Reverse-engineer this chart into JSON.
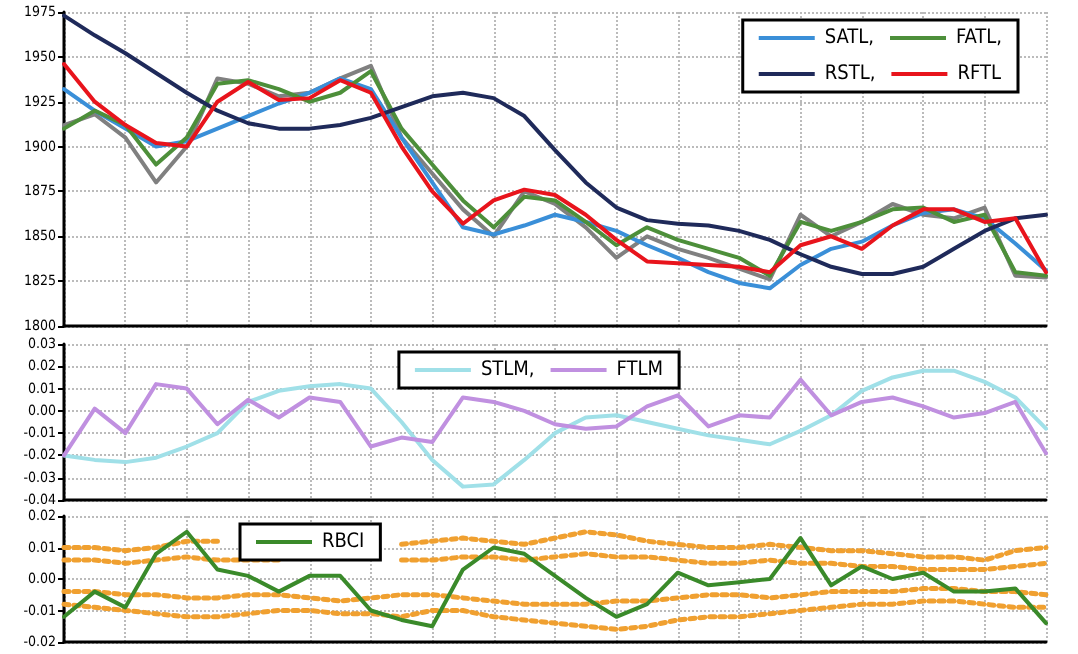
{
  "chart_data": [
    {
      "type": "line",
      "categories": [
        null,
        null,
        null,
        null,
        null,
        null,
        null,
        null,
        null,
        null,
        null,
        null,
        null,
        null,
        null,
        null,
        null,
        null,
        null,
        null,
        null,
        null,
        null,
        null,
        null,
        null,
        null,
        null,
        null,
        null,
        null,
        null,
        null
      ],
      "series": [
        {
          "color": "#808080",
          "values": [
            1912,
            1918,
            1905,
            1880,
            1900,
            1938,
            1935,
            1928,
            1930,
            1938,
            1945,
            1905,
            1885,
            1865,
            1850,
            1875,
            1868,
            1855,
            1838,
            1850,
            1843,
            1838,
            1832,
            1826,
            1862,
            1850,
            1858,
            1868,
            1862,
            1860,
            1866,
            1828,
            1827
          ]
        },
        {
          "name": "SATL,",
          "color": "#3a8fd8",
          "values": [
            1932,
            1920,
            1910,
            1900,
            1903,
            1910,
            1917,
            1924,
            1930,
            1938,
            1932,
            1905,
            1880,
            1855,
            1851,
            1856,
            1862,
            1858,
            1853,
            1845,
            1838,
            1830,
            1824,
            1821,
            1834,
            1843,
            1847,
            1856,
            1863,
            1865,
            1860,
            1846,
            1831
          ]
        },
        {
          "name": "FATL,",
          "color": "#4d8f3a",
          "values": [
            1910,
            1920,
            1912,
            1890,
            1905,
            1935,
            1937,
            1932,
            1925,
            1930,
            1942,
            1910,
            1890,
            1870,
            1855,
            1872,
            1870,
            1858,
            1845,
            1855,
            1848,
            1843,
            1838,
            1828,
            1858,
            1853,
            1858,
            1865,
            1866,
            1858,
            1862,
            1830,
            1828
          ]
        },
        {
          "name": "RSTL,",
          "color": "#1f2a5a",
          "values": [
            1973,
            1962,
            1952,
            1941,
            1930,
            1920,
            1913,
            1910,
            1910,
            1912,
            1916,
            1922,
            1928,
            1930,
            1927,
            1917,
            1898,
            1880,
            1866,
            1859,
            1857,
            1856,
            1853,
            1848,
            1840,
            1833,
            1829,
            1829,
            1833,
            1843,
            1853,
            1860,
            1862
          ]
        },
        {
          "name": "RFTL",
          "color": "#e8141c",
          "values": [
            1946,
            1925,
            1912,
            1902,
            1900,
            1925,
            1936,
            1926,
            1927,
            1937,
            1930,
            1900,
            1875,
            1857,
            1870,
            1876,
            1873,
            1862,
            1848,
            1836,
            1835,
            1834,
            1833,
            1830,
            1845,
            1850,
            1843,
            1856,
            1865,
            1865,
            1858,
            1860,
            1830
          ]
        }
      ],
      "ylim": [
        1800,
        1975
      ],
      "yticks": [
        1800,
        1825,
        1850,
        1875,
        1900,
        1925,
        1950,
        1975
      ],
      "grid": true,
      "legend": "top right",
      "tick_labels": "y",
      "marker": "none",
      "line_style": "solid"
    },
    {
      "type": "line",
      "categories": [
        null,
        null,
        null,
        null,
        null,
        null,
        null,
        null,
        null,
        null,
        null,
        null,
        null,
        null,
        null,
        null,
        null,
        null,
        null,
        null,
        null,
        null,
        null,
        null,
        null,
        null,
        null,
        null,
        null,
        null,
        null,
        null,
        null
      ],
      "series": [
        {
          "name": "STLM,",
          "color": "#a0e0e8",
          "values": [
            -0.02,
            -0.022,
            -0.023,
            -0.021,
            -0.016,
            -0.01,
            0.004,
            0.009,
            0.011,
            0.012,
            0.01,
            -0.005,
            -0.022,
            -0.034,
            -0.033,
            -0.022,
            -0.01,
            -0.003,
            -0.002,
            -0.005,
            -0.008,
            -0.011,
            -0.013,
            -0.015,
            -0.009,
            -0.002,
            0.009,
            0.015,
            0.018,
            0.018,
            0.013,
            0.006,
            -0.008
          ]
        },
        {
          "name": "FTLM",
          "color": "#c090e0",
          "values": [
            -0.02,
            0.001,
            -0.01,
            0.012,
            0.01,
            -0.006,
            0.005,
            -0.003,
            0.006,
            0.004,
            -0.016,
            -0.012,
            -0.014,
            0.006,
            0.004,
            0.0,
            -0.006,
            -0.008,
            -0.007,
            0.002,
            0.007,
            -0.007,
            -0.002,
            -0.003,
            0.014,
            -0.002,
            0.004,
            0.006,
            0.002,
            -0.003,
            -0.001,
            0.004,
            -0.019
          ]
        }
      ],
      "ylim": [
        -0.04,
        0.03
      ],
      "yticks": [
        {
          "value": -0.04,
          "label": "-0.04"
        },
        {
          "value": -0.03,
          "label": "-0.03"
        },
        {
          "value": -0.02,
          "label": "-0.02"
        },
        {
          "value": -0.01,
          "label": "-0.01"
        },
        {
          "value": 0,
          "label": "0.00"
        },
        {
          "value": 0.01,
          "label": "0.01"
        },
        {
          "value": 0.02,
          "label": "0.02"
        },
        {
          "value": 0.03,
          "label": "0.03"
        }
      ],
      "grid": true,
      "legend": "top",
      "tick_labels": "y",
      "marker": "none",
      "line_style": "solid"
    },
    {
      "type": "line",
      "categories": [
        null,
        null,
        null,
        null,
        null,
        null,
        null,
        null,
        null,
        null,
        null,
        null,
        null,
        null,
        null,
        null,
        null,
        null,
        null,
        null,
        null,
        null,
        null,
        null,
        null,
        null,
        null,
        null,
        null,
        null,
        null,
        null,
        null
      ],
      "series": [
        {
          "color": "#f0a030",
          "line_style": "dotted",
          "values": [
            0.01,
            0.01,
            0.009,
            0.01,
            0.012,
            0.012,
            null,
            null,
            null,
            null,
            null,
            0.011,
            0.012,
            0.013,
            0.012,
            0.011,
            0.013,
            0.015,
            0.014,
            0.012,
            0.011,
            0.01,
            0.01,
            0.011,
            0.01,
            0.009,
            0.009,
            0.008,
            0.007,
            0.007,
            0.006,
            0.009,
            0.01
          ]
        },
        {
          "color": "#f0a030",
          "line_style": "dotted",
          "values": [
            0.006,
            0.006,
            0.005,
            0.006,
            0.007,
            0.006,
            0.006,
            0.006,
            null,
            null,
            null,
            0.006,
            0.006,
            0.007,
            0.007,
            0.006,
            0.007,
            0.008,
            0.007,
            0.007,
            0.006,
            0.005,
            0.005,
            0.006,
            0.005,
            0.005,
            0.004,
            0.004,
            0.003,
            0.003,
            0.003,
            0.004,
            0.005
          ]
        },
        {
          "color": "#f0a030",
          "line_style": "dotted",
          "values": [
            -0.004,
            -0.004,
            -0.005,
            -0.005,
            -0.006,
            -0.006,
            -0.005,
            -0.005,
            -0.006,
            -0.007,
            -0.006,
            -0.005,
            -0.005,
            -0.006,
            -0.007,
            -0.008,
            -0.008,
            -0.008,
            -0.007,
            -0.007,
            -0.006,
            -0.005,
            -0.005,
            -0.006,
            -0.005,
            -0.004,
            -0.004,
            -0.004,
            -0.003,
            -0.003,
            -0.004,
            -0.004,
            -0.005
          ]
        },
        {
          "color": "#f0a030",
          "line_style": "dotted",
          "values": [
            -0.008,
            -0.009,
            -0.01,
            -0.011,
            -0.012,
            -0.012,
            -0.011,
            -0.01,
            -0.01,
            -0.011,
            -0.011,
            -0.012,
            -0.01,
            -0.01,
            -0.012,
            -0.013,
            -0.014,
            -0.015,
            -0.016,
            -0.015,
            -0.013,
            -0.012,
            -0.012,
            -0.011,
            -0.01,
            -0.009,
            -0.008,
            -0.008,
            -0.007,
            -0.007,
            -0.008,
            -0.009,
            -0.009
          ]
        },
        {
          "name": "RBCI",
          "color": "#3a8a2a",
          "values": [
            -0.012,
            -0.004,
            -0.009,
            0.008,
            0.015,
            0.003,
            0.001,
            -0.004,
            0.001,
            0.001,
            -0.01,
            -0.013,
            -0.015,
            0.003,
            0.01,
            0.008,
            0.001,
            -0.006,
            -0.012,
            -0.008,
            0.002,
            -0.002,
            -0.001,
            0.0,
            0.013,
            -0.002,
            0.004,
            0.0,
            0.002,
            -0.004,
            -0.004,
            -0.003,
            -0.014
          ]
        }
      ],
      "ylim": [
        -0.02,
        0.02
      ],
      "yticks": [
        {
          "value": -0.02,
          "label": "-0.02"
        },
        {
          "value": -0.01,
          "label": "-0.01"
        },
        {
          "value": 0,
          "label": "0.00"
        },
        {
          "value": 0.01,
          "label": "0.01"
        },
        {
          "value": 0.02,
          "label": "0.02"
        }
      ],
      "grid": true,
      "legend": "top left",
      "tick_labels": "y",
      "marker": "none",
      "line_style": "solid"
    }
  ]
}
